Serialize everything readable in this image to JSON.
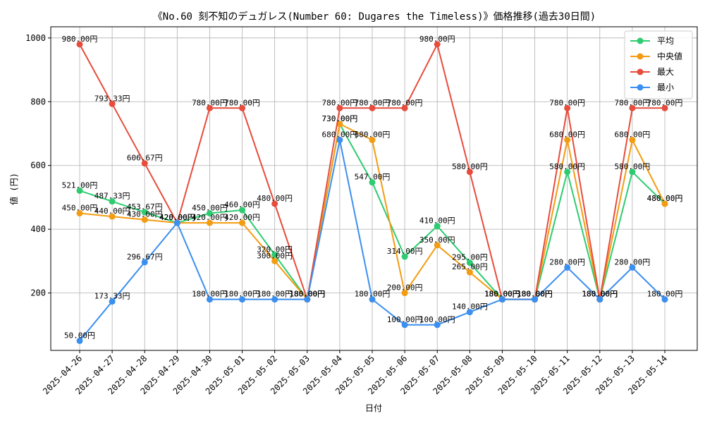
{
  "chart_data": {
    "type": "line",
    "title": "《No.60 刻不知のデュガレス(Number 60: Dugares the Timeless)》価格推移(過去30日間)",
    "xlabel": "日付",
    "ylabel": "値 (円)",
    "ylim": [
      20,
      1035
    ],
    "yticks": [
      200,
      400,
      600,
      800,
      1000
    ],
    "grid": true,
    "legend_position": "top-right",
    "value_suffix": "円",
    "categories": [
      "2025-04-26",
      "2025-04-27",
      "2025-04-28",
      "2025-04-29",
      "2025-04-30",
      "2025-05-01",
      "2025-05-02",
      "2025-05-03",
      "2025-05-04",
      "2025-05-05",
      "2025-05-06",
      "2025-05-07",
      "2025-05-08",
      "2025-05-09",
      "2025-05-10",
      "2025-05-11",
      "2025-05-12",
      "2025-05-13",
      "2025-05-14"
    ],
    "series": [
      {
        "name": "平均",
        "color": "#2ecc71",
        "values": [
          521.0,
          487.33,
          453.67,
          420.0,
          450.0,
          460.0,
          320.0,
          180.0,
          730.0,
          547.0,
          314.0,
          410.0,
          295.0,
          180.0,
          180.0,
          580.0,
          180.0,
          580.0,
          480.0
        ]
      },
      {
        "name": "中央値",
        "color": "#f39c12",
        "values": [
          450.0,
          440.0,
          430.0,
          420.0,
          420.0,
          420.0,
          300.0,
          180.0,
          730.0,
          680.0,
          200.0,
          350.0,
          265.0,
          180.0,
          180.0,
          680.0,
          180.0,
          680.0,
          480.0
        ]
      },
      {
        "name": "最大",
        "color": "#e74c3c",
        "values": [
          980.0,
          793.33,
          606.67,
          420.0,
          780.0,
          780.0,
          480.0,
          180.0,
          780.0,
          780.0,
          780.0,
          980.0,
          580.0,
          180.0,
          180.0,
          780.0,
          180.0,
          780.0,
          780.0
        ]
      },
      {
        "name": "最小",
        "color": "#3b8ff0",
        "values": [
          50.0,
          173.33,
          296.67,
          420.0,
          180.0,
          180.0,
          180.0,
          180.0,
          680.0,
          180.0,
          100.0,
          100.0,
          140.0,
          180.0,
          180.0,
          280.0,
          180.0,
          280.0,
          180.0
        ]
      }
    ]
  }
}
